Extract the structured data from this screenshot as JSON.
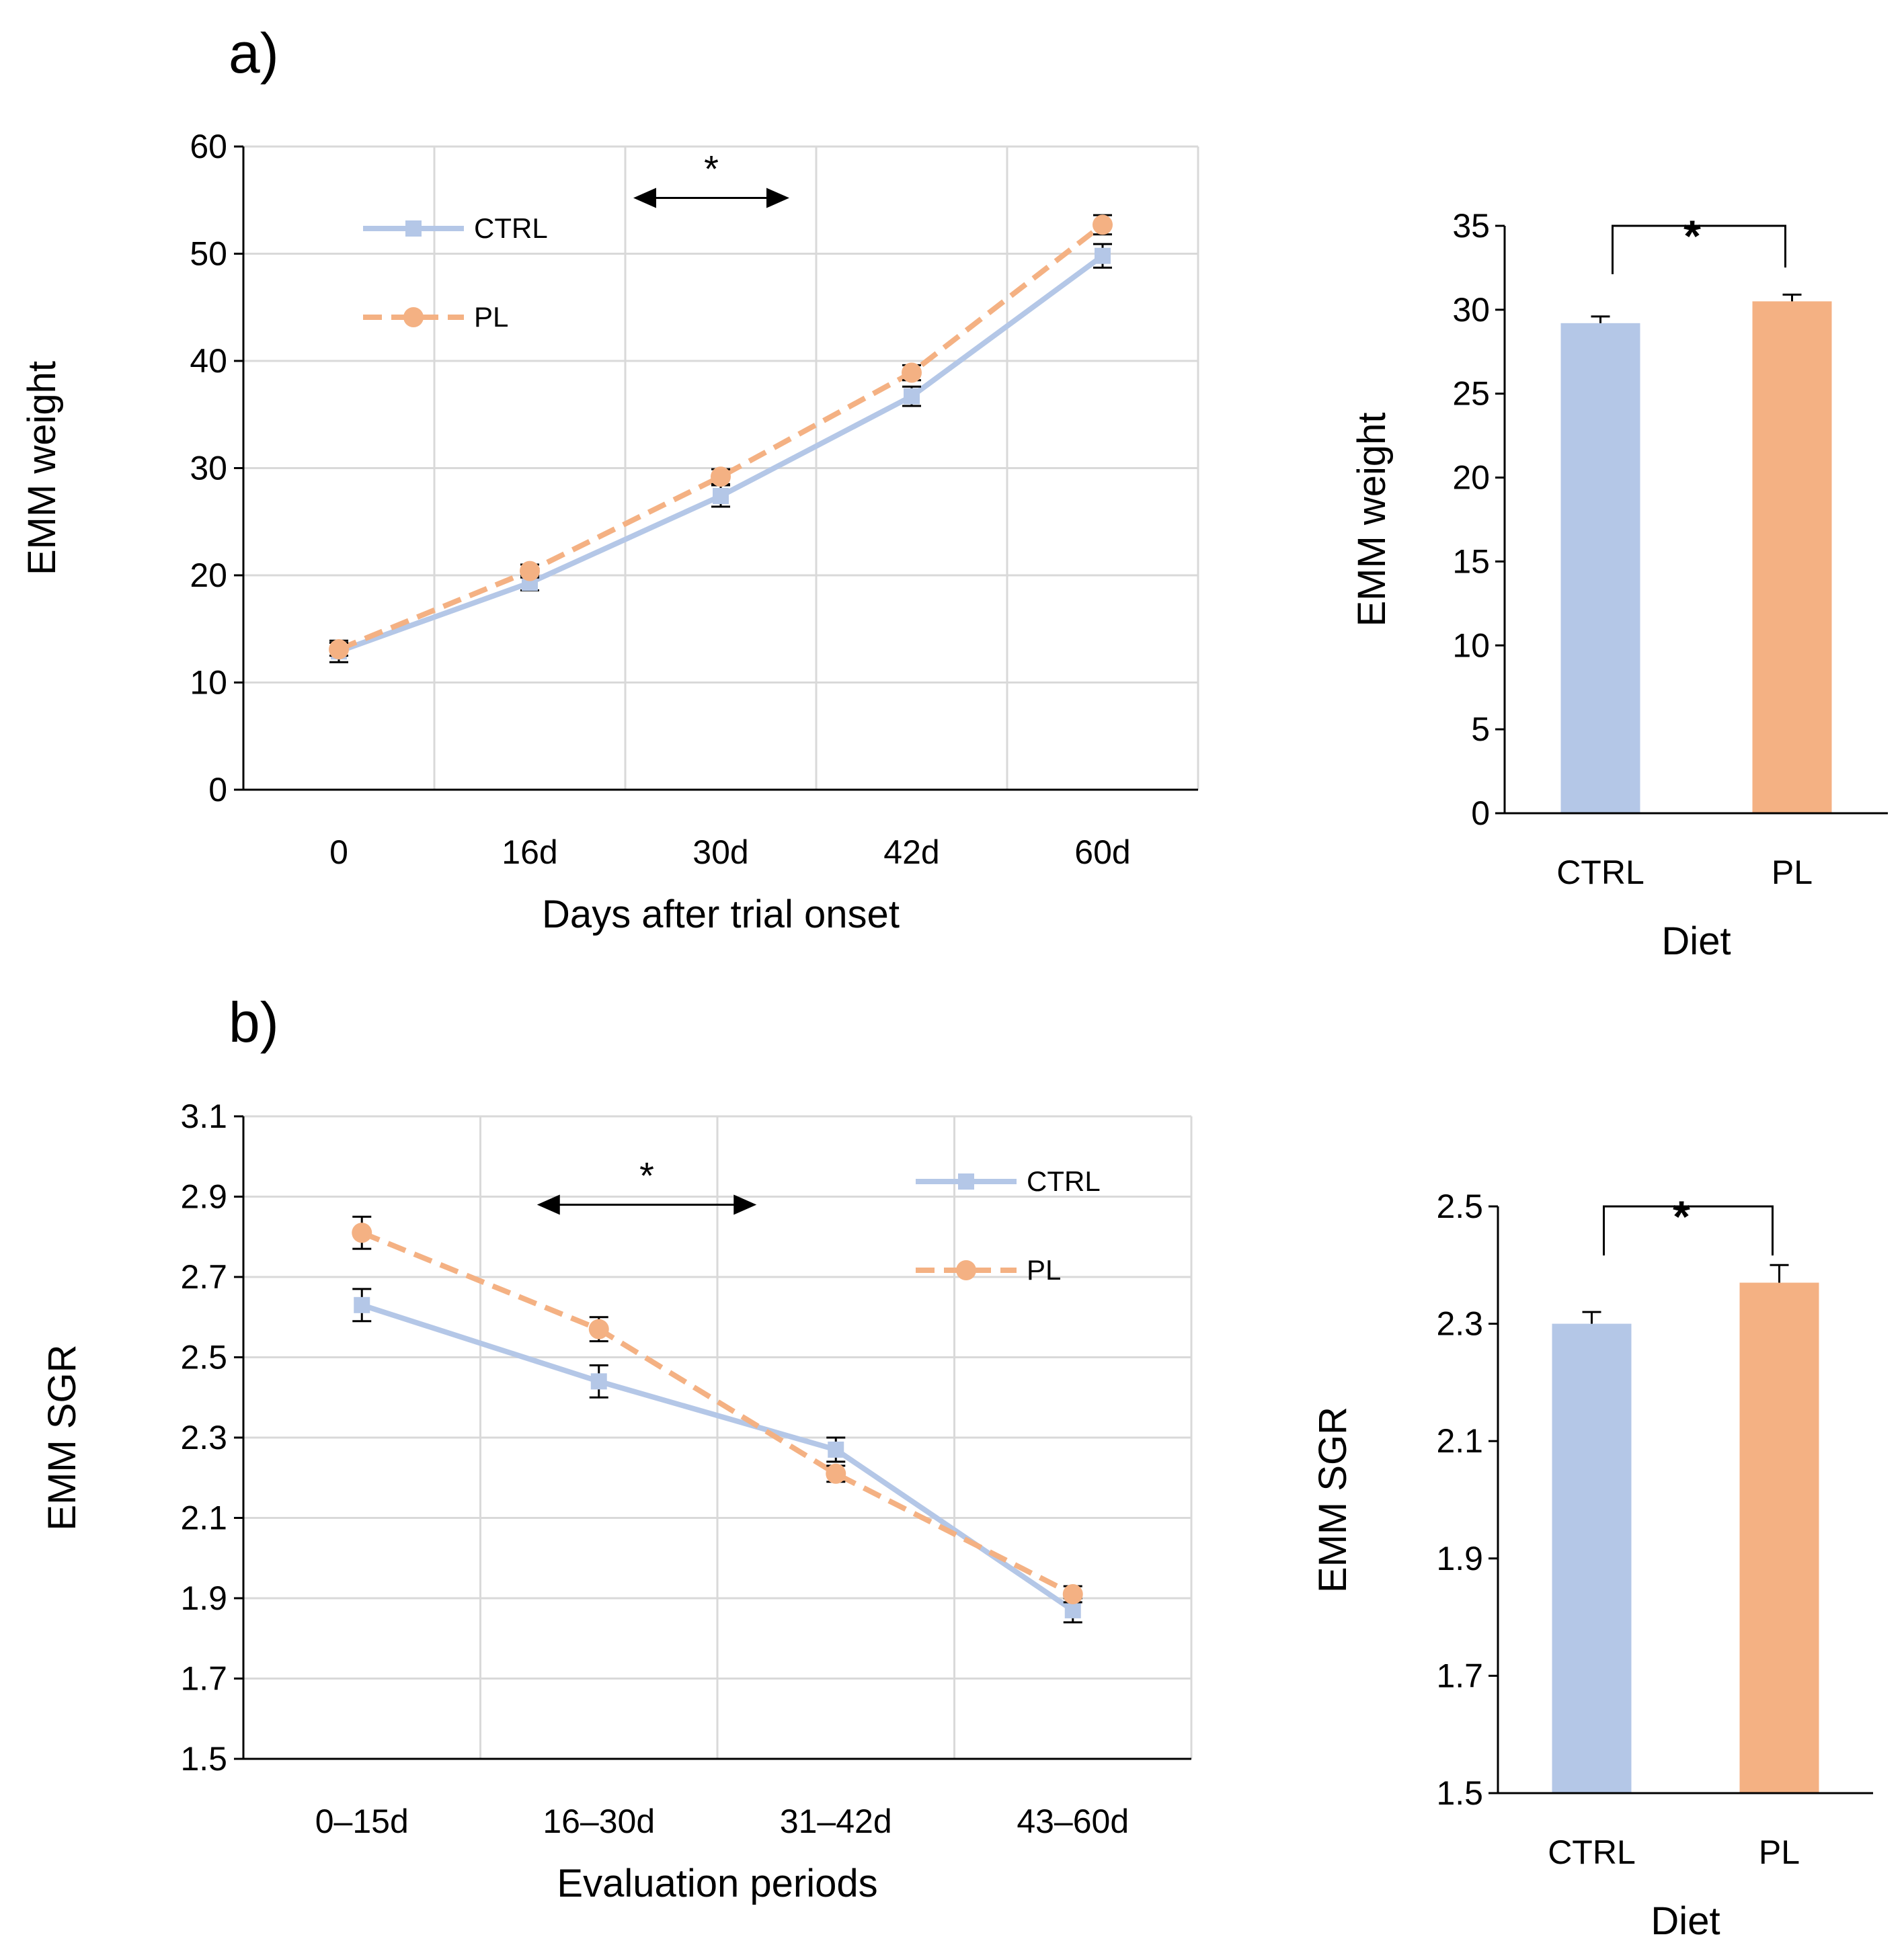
{
  "colors": {
    "ctrl": "#b4c7e7",
    "pl": "#f4b183",
    "grid": "#d9d9d9",
    "axis": "#000000"
  },
  "chart_data": [
    {
      "id": "a-line",
      "panel_label": "a)",
      "type": "line",
      "xlabel": "Days after trial onset",
      "ylabel": "EMM weight",
      "categories": [
        "0",
        "16d",
        "30d",
        "42d",
        "60d"
      ],
      "yticks": [
        "0",
        "10",
        "20",
        "30",
        "40",
        "50",
        "60"
      ],
      "ylim": [
        0,
        60
      ],
      "grid": true,
      "legend": [
        "CTRL",
        "PL"
      ],
      "series": [
        {
          "name": "CTRL",
          "values": [
            12.9,
            19.3,
            27.4,
            36.7,
            49.8
          ],
          "errors": [
            1.0,
            0.7,
            1.0,
            0.9,
            1.1
          ],
          "style": "solid",
          "marker": "square"
        },
        {
          "name": "PL",
          "values": [
            13.1,
            20.4,
            29.2,
            38.9,
            52.7
          ],
          "errors": [
            0.6,
            0.6,
            0.7,
            0.7,
            0.9
          ],
          "style": "dashed",
          "marker": "circle"
        }
      ],
      "annotation": {
        "text": "*",
        "from_category": "30d",
        "to_category": "42d",
        "y": 55.2
      }
    },
    {
      "id": "a-bar",
      "type": "bar",
      "xlabel": "Diet",
      "ylabel": "EMM weight",
      "categories": [
        "CTRL",
        "PL"
      ],
      "values": [
        29.2,
        30.5
      ],
      "errors": [
        0.4,
        0.4
      ],
      "yticks": [
        "0",
        "5",
        "10",
        "15",
        "20",
        "25",
        "30",
        "35"
      ],
      "ylim": [
        0,
        35
      ],
      "annotation": {
        "text": "*",
        "y": 35
      }
    },
    {
      "id": "b-line",
      "panel_label": "b)",
      "type": "line",
      "xlabel": "Evaluation periods",
      "ylabel": "EMM SGR",
      "categories": [
        "0–15d",
        "16–30d",
        "31–42d",
        "43–60d"
      ],
      "yticks": [
        "1.5",
        "1.7",
        "1.9",
        "2.1",
        "2.3",
        "2.5",
        "2.7",
        "2.9",
        "3.1"
      ],
      "ylim": [
        1.5,
        3.1
      ],
      "grid": true,
      "legend": [
        "CTRL",
        "PL"
      ],
      "series": [
        {
          "name": "CTRL",
          "values": [
            2.63,
            2.44,
            2.27,
            1.87
          ],
          "errors": [
            0.04,
            0.04,
            0.03,
            0.03
          ],
          "style": "solid",
          "marker": "square"
        },
        {
          "name": "PL",
          "values": [
            2.81,
            2.57,
            2.21,
            1.91
          ],
          "errors": [
            0.04,
            0.03,
            0.02,
            0.02
          ],
          "style": "dashed",
          "marker": "circle"
        }
      ],
      "annotation": {
        "text": "*",
        "from_category": "16–30d",
        "to_category": "31–42d",
        "y": 2.88
      }
    },
    {
      "id": "b-bar",
      "type": "bar",
      "xlabel": "Diet",
      "ylabel": "EMM SGR",
      "categories": [
        "CTRL",
        "PL"
      ],
      "values": [
        2.3,
        2.37
      ],
      "errors": [
        0.02,
        0.03
      ],
      "yticks": [
        "1.5",
        "1.7",
        "1.9",
        "2.1",
        "2.3",
        "2.5"
      ],
      "ylim": [
        1.5,
        2.5
      ],
      "annotation": {
        "text": "*",
        "y": 2.5
      }
    }
  ]
}
